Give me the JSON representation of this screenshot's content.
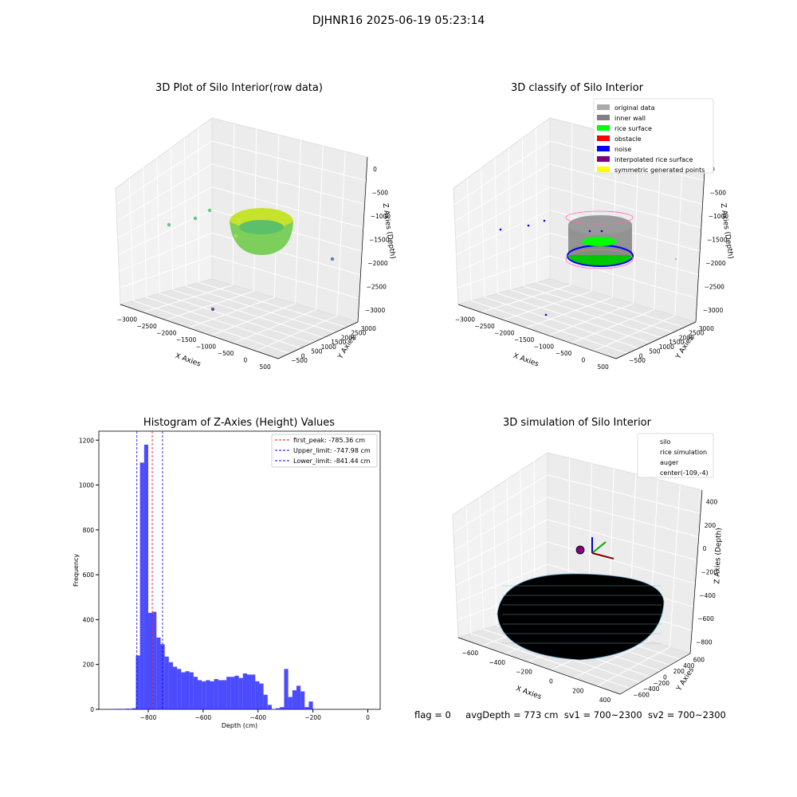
{
  "suptitle": "DJHNR16 2025-06-19 05:23:14",
  "footer": {
    "flag": "flag = 0",
    "avg": "avgDepth = 773 cm",
    "sv1": "sv1 = 700~2300",
    "sv2": "sv2 = 700~2300"
  },
  "colors": {
    "hist_bar": "#0000ff",
    "peak_line": "#ff0000",
    "limit_line": "#0000ff",
    "silo": "#ff69b4",
    "rice_sim": "#87ceeb",
    "auger": "#ff4500",
    "original": "#aaaaaa",
    "inner_wall": "#808080",
    "rice_surface": "#00ff00",
    "obstacle": "#ff0000",
    "noise": "#0000ff",
    "interp": "#800080",
    "symmetric": "#ffff00"
  },
  "chart_data": [
    {
      "type": "scatter",
      "title": "3D Plot of Silo Interior(row data)",
      "xlabel": "X Axies",
      "ylabel": "Y Axies",
      "zlabel": "Z Axies (Depth)",
      "xticks": [
        "−3000",
        "−2500",
        "−2000",
        "−1500",
        "−1000",
        "−500",
        "0",
        "500"
      ],
      "yticks": [
        "−500",
        "0",
        "500",
        "1000",
        "1500",
        "2000",
        "2500",
        "3000"
      ],
      "zticks": [
        "0",
        "−500",
        "−1000",
        "−1500",
        "−2000",
        "−2500",
        "−3000"
      ],
      "grid": true
    },
    {
      "type": "scatter",
      "title": "3D classify of Silo Interior",
      "xlabel": "X Axies",
      "ylabel": "Y Axies",
      "zlabel": "Z Axies (Depth)",
      "xticks": [
        "−3000",
        "−2500",
        "−2000",
        "−1500",
        "−1000",
        "−500",
        "0",
        "500"
      ],
      "yticks": [
        "−500",
        "0",
        "500",
        "1000",
        "1500",
        "2000",
        "2500",
        "3000"
      ],
      "zticks": [
        "0",
        "−500",
        "−1000",
        "−1500",
        "−2000",
        "−2500",
        "−3000"
      ],
      "legend": [
        "original data",
        "inner wall",
        "rice surface",
        "obstacle",
        "noise",
        "interpolated rice surface",
        "symmetric generated points"
      ],
      "legend_position": "top-right",
      "grid": true
    },
    {
      "type": "bar",
      "title": "Histogram of Z-Axies (Height) Values",
      "xlabel": "Depth (cm)",
      "ylabel": "Frequency",
      "xlim": [
        -980,
        45
      ],
      "ylim": [
        0,
        1240
      ],
      "xticks": [
        -800,
        -600,
        -400,
        -200,
        0
      ],
      "xticklabels": [
        "−800",
        "−600",
        "−400",
        "−200",
        "0"
      ],
      "yticks": [
        0,
        200,
        400,
        600,
        800,
        1000,
        1200
      ],
      "bin_width": 15,
      "bin_start": -860,
      "values": [
        5,
        240,
        1100,
        1180,
        430,
        435,
        320,
        290,
        235,
        210,
        190,
        180,
        165,
        170,
        165,
        145,
        130,
        125,
        130,
        125,
        135,
        130,
        130,
        145,
        145,
        150,
        140,
        160,
        155,
        155,
        125,
        115,
        65,
        20,
        0,
        5,
        10,
        180,
        55,
        85,
        105,
        80,
        10,
        35
      ],
      "extra_bars": [
        [
          -925,
          2
        ],
        [
          -910,
          2
        ],
        [
          -895,
          2
        ],
        [
          -880,
          3
        ]
      ],
      "vlines": [
        {
          "x": -785.36,
          "label": "first_peak: -785.36 cm",
          "color": "#ff0000"
        },
        {
          "x": -747.98,
          "label": "Upper_limit: -747.98 cm",
          "color": "#0000ff"
        },
        {
          "x": -841.44,
          "label": "Lower_limit: -841.44 cm",
          "color": "#0000ff"
        }
      ],
      "legend_position": "top-right"
    },
    {
      "type": "scatter",
      "title": "3D simulation of Silo Interior",
      "xlabel": "X Axies",
      "ylabel": "Y Axies",
      "zlabel": "Z Axies (Depth)",
      "xticks": [
        "−600",
        "−400",
        "−200",
        "0",
        "200",
        "400"
      ],
      "yticks": [
        "−600",
        "−400",
        "−200",
        "0",
        "200",
        "400",
        "600"
      ],
      "zticks": [
        "400",
        "200",
        "0",
        "−200",
        "−400",
        "−600",
        "−800"
      ],
      "legend": [
        "silo",
        "rice simulation",
        "auger",
        "center(-109,-4)"
      ],
      "legend_position": "top-right",
      "grid": true
    }
  ]
}
